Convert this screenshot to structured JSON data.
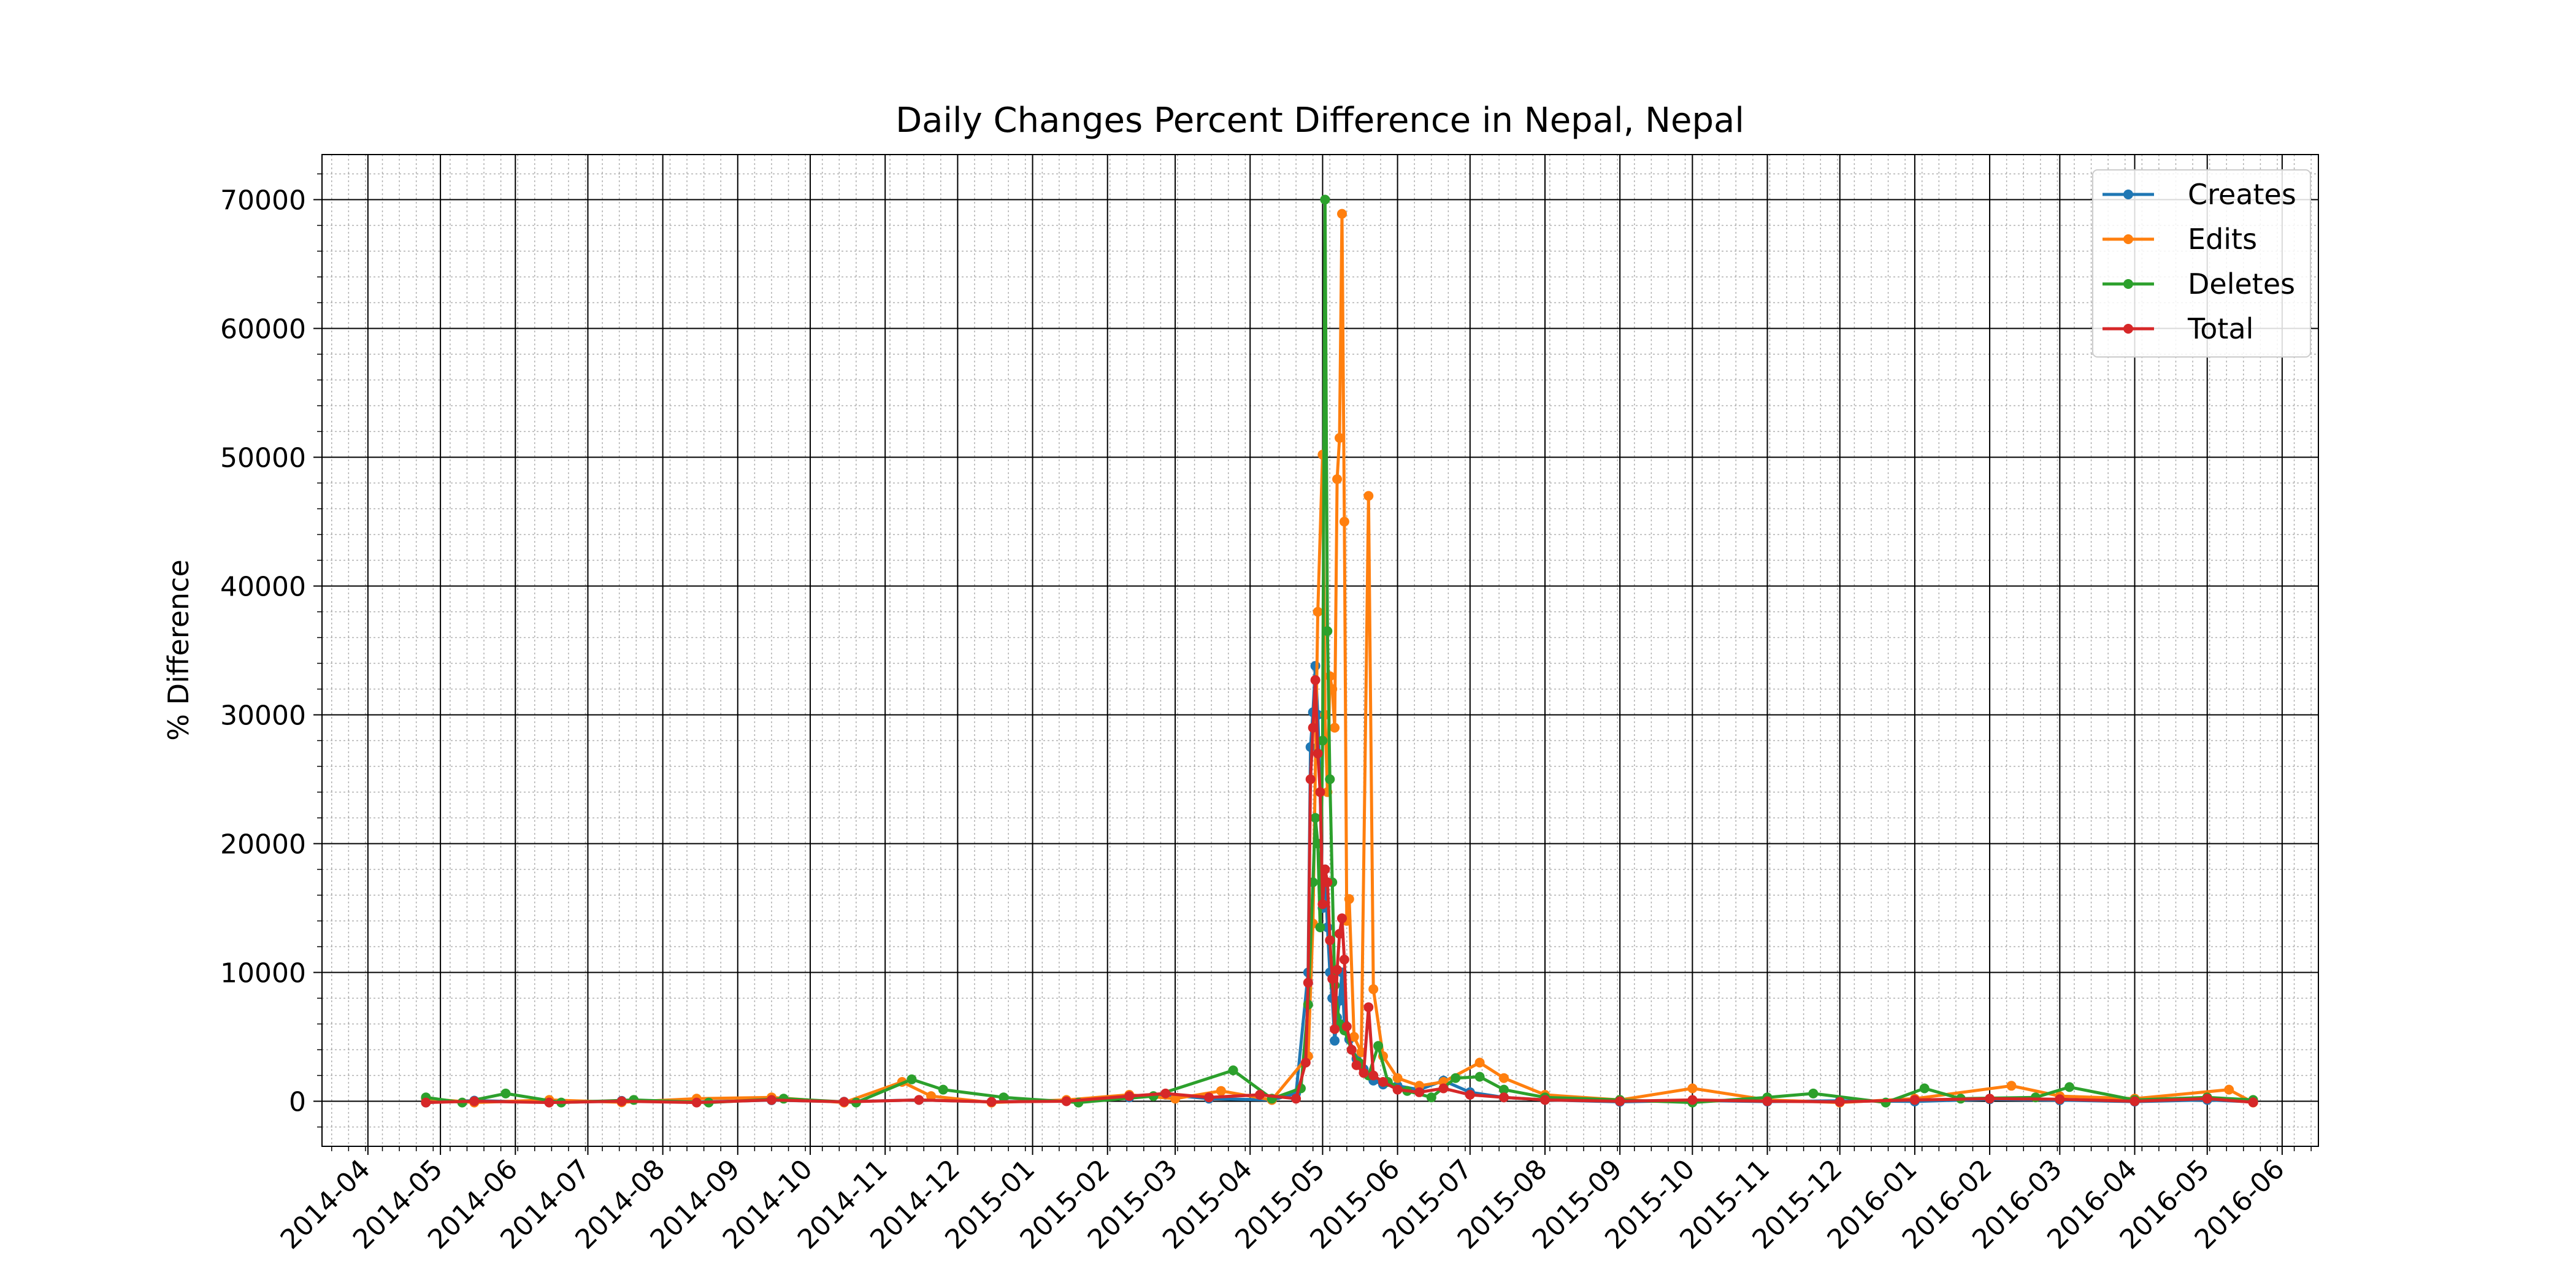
{
  "chart_data": {
    "type": "line",
    "title": "Daily Changes Percent Difference in Nepal, Nepal",
    "xlabel": "",
    "ylabel": "% Difference",
    "x_scale": "date",
    "xlim": [
      "2014-03-13",
      "2016-06-16"
    ],
    "ylim": [
      -3500,
      73500
    ],
    "yticks": [
      0,
      10000,
      20000,
      30000,
      40000,
      50000,
      60000,
      70000
    ],
    "ytick_labels": [
      "0",
      "10000",
      "20000",
      "30000",
      "40000",
      "50000",
      "60000",
      "70000"
    ],
    "xticks": [
      "2014-04-01",
      "2014-05-01",
      "2014-06-01",
      "2014-07-01",
      "2014-08-01",
      "2014-09-01",
      "2014-10-01",
      "2014-11-01",
      "2014-12-01",
      "2015-01-01",
      "2015-02-01",
      "2015-03-01",
      "2015-04-01",
      "2015-05-01",
      "2015-06-01",
      "2015-07-01",
      "2015-08-01",
      "2015-09-01",
      "2015-10-01",
      "2015-11-01",
      "2015-12-01",
      "2016-01-01",
      "2016-02-01",
      "2016-03-01",
      "2016-04-01",
      "2016-05-01",
      "2016-06-01"
    ],
    "xtick_labels": [
      "2014-04",
      "2014-05",
      "2014-06",
      "2014-07",
      "2014-08",
      "2014-09",
      "2014-10",
      "2014-11",
      "2014-12",
      "2015-01",
      "2015-02",
      "2015-03",
      "2015-04",
      "2015-05",
      "2015-06",
      "2015-07",
      "2015-08",
      "2015-09",
      "2015-10",
      "2015-11",
      "2015-12",
      "2016-01",
      "2016-02",
      "2016-03",
      "2016-04",
      "2016-05",
      "2016-06"
    ],
    "grid": true,
    "minor_grid": true,
    "legend_position": "top-right",
    "series": [
      {
        "name": "Creates",
        "color": "#1f77b4",
        "points": [
          [
            "2014-04-25",
            -100
          ],
          [
            "2014-05-15",
            50
          ],
          [
            "2014-06-15",
            -80
          ],
          [
            "2014-07-15",
            30
          ],
          [
            "2014-08-15",
            -60
          ],
          [
            "2014-09-15",
            80
          ],
          [
            "2014-10-15",
            -40
          ],
          [
            "2014-11-15",
            100
          ],
          [
            "2014-12-15",
            -50
          ],
          [
            "2015-01-15",
            60
          ],
          [
            "2015-02-10",
            300
          ],
          [
            "2015-02-25",
            500
          ],
          [
            "2015-03-15",
            200
          ],
          [
            "2015-04-10",
            100
          ],
          [
            "2015-04-20",
            600
          ],
          [
            "2015-04-25",
            10000
          ],
          [
            "2015-04-26",
            27500
          ],
          [
            "2015-04-27",
            30200
          ],
          [
            "2015-04-28",
            33800
          ],
          [
            "2015-04-29",
            30000
          ],
          [
            "2015-04-30",
            24000
          ],
          [
            "2015-05-01",
            15000
          ],
          [
            "2015-05-02",
            18000
          ],
          [
            "2015-05-03",
            13500
          ],
          [
            "2015-05-04",
            10000
          ],
          [
            "2015-05-05",
            8000
          ],
          [
            "2015-05-06",
            4700
          ],
          [
            "2015-05-07",
            6500
          ],
          [
            "2015-05-08",
            7800
          ],
          [
            "2015-05-09",
            10000
          ],
          [
            "2015-05-10",
            6000
          ],
          [
            "2015-05-12",
            4800
          ],
          [
            "2015-05-15",
            3300
          ],
          [
            "2015-05-18",
            2500
          ],
          [
            "2015-05-22",
            1600
          ],
          [
            "2015-05-26",
            1300
          ],
          [
            "2015-06-01",
            1200
          ],
          [
            "2015-06-10",
            900
          ],
          [
            "2015-06-20",
            1600
          ],
          [
            "2015-07-01",
            700
          ],
          [
            "2015-07-15",
            300
          ],
          [
            "2015-08-01",
            100
          ],
          [
            "2015-09-01",
            -50
          ],
          [
            "2015-10-01",
            60
          ],
          [
            "2015-11-01",
            -30
          ],
          [
            "2015-12-01",
            40
          ],
          [
            "2016-01-01",
            -20
          ],
          [
            "2016-02-01",
            150
          ],
          [
            "2016-03-01",
            80
          ],
          [
            "2016-04-01",
            -30
          ],
          [
            "2016-05-01",
            100
          ],
          [
            "2016-05-20",
            -50
          ]
        ]
      },
      {
        "name": "Edits",
        "color": "#ff7f0e",
        "points": [
          [
            "2014-04-25",
            200
          ],
          [
            "2014-05-15",
            -100
          ],
          [
            "2014-06-15",
            100
          ],
          [
            "2014-07-15",
            -80
          ],
          [
            "2014-08-15",
            200
          ],
          [
            "2014-09-15",
            300
          ],
          [
            "2014-10-15",
            -100
          ],
          [
            "2014-11-08",
            1500
          ],
          [
            "2014-11-20",
            400
          ],
          [
            "2014-12-15",
            -100
          ],
          [
            "2015-01-15",
            100
          ],
          [
            "2015-02-10",
            500
          ],
          [
            "2015-03-01",
            200
          ],
          [
            "2015-03-20",
            800
          ],
          [
            "2015-04-10",
            100
          ],
          [
            "2015-04-25",
            3500
          ],
          [
            "2015-04-27",
            13800
          ],
          [
            "2015-04-29",
            38000
          ],
          [
            "2015-05-01",
            50200
          ],
          [
            "2015-05-02",
            30000
          ],
          [
            "2015-05-03",
            24000
          ],
          [
            "2015-05-04",
            33000
          ],
          [
            "2015-05-05",
            32000
          ],
          [
            "2015-05-06",
            29000
          ],
          [
            "2015-05-07",
            48300
          ],
          [
            "2015-05-08",
            51500
          ],
          [
            "2015-05-09",
            68900
          ],
          [
            "2015-05-10",
            45000
          ],
          [
            "2015-05-11",
            14000
          ],
          [
            "2015-05-12",
            15700
          ],
          [
            "2015-05-14",
            5000
          ],
          [
            "2015-05-17",
            3800
          ],
          [
            "2015-05-20",
            47000
          ],
          [
            "2015-05-22",
            8700
          ],
          [
            "2015-05-26",
            3500
          ],
          [
            "2015-06-01",
            1800
          ],
          [
            "2015-06-10",
            1200
          ],
          [
            "2015-06-20",
            1500
          ],
          [
            "2015-07-05",
            3000
          ],
          [
            "2015-07-15",
            1800
          ],
          [
            "2015-08-01",
            500
          ],
          [
            "2015-09-01",
            100
          ],
          [
            "2015-10-01",
            1000
          ],
          [
            "2015-11-01",
            100
          ],
          [
            "2015-12-01",
            -100
          ],
          [
            "2016-01-01",
            200
          ],
          [
            "2016-02-10",
            1200
          ],
          [
            "2016-03-01",
            400
          ],
          [
            "2016-04-01",
            200
          ],
          [
            "2016-05-10",
            900
          ],
          [
            "2016-05-20",
            -100
          ]
        ]
      },
      {
        "name": "Deletes",
        "color": "#2ca02c",
        "points": [
          [
            "2014-04-25",
            300
          ],
          [
            "2014-05-10",
            -100
          ],
          [
            "2014-05-28",
            600
          ],
          [
            "2014-06-20",
            -100
          ],
          [
            "2014-07-20",
            100
          ],
          [
            "2014-08-20",
            -100
          ],
          [
            "2014-09-20",
            200
          ],
          [
            "2014-10-20",
            -100
          ],
          [
            "2014-11-12",
            1700
          ],
          [
            "2014-11-25",
            900
          ],
          [
            "2014-12-20",
            300
          ],
          [
            "2015-01-20",
            -100
          ],
          [
            "2015-02-20",
            400
          ],
          [
            "2015-03-25",
            2400
          ],
          [
            "2015-04-10",
            200
          ],
          [
            "2015-04-22",
            1000
          ],
          [
            "2015-04-25",
            7500
          ],
          [
            "2015-04-27",
            17000
          ],
          [
            "2015-04-28",
            22000
          ],
          [
            "2015-04-29",
            20000
          ],
          [
            "2015-04-30",
            13500
          ],
          [
            "2015-05-01",
            28000
          ],
          [
            "2015-05-02",
            70000
          ],
          [
            "2015-05-03",
            36500
          ],
          [
            "2015-05-04",
            25000
          ],
          [
            "2015-05-05",
            17000
          ],
          [
            "2015-05-06",
            9000
          ],
          [
            "2015-05-08",
            6000
          ],
          [
            "2015-05-10",
            5500
          ],
          [
            "2015-05-13",
            4000
          ],
          [
            "2015-05-16",
            3000
          ],
          [
            "2015-05-20",
            2000
          ],
          [
            "2015-05-24",
            4300
          ],
          [
            "2015-05-28",
            1500
          ],
          [
            "2015-06-05",
            800
          ],
          [
            "2015-06-15",
            300
          ],
          [
            "2015-06-25",
            1800
          ],
          [
            "2015-07-05",
            1900
          ],
          [
            "2015-07-15",
            900
          ],
          [
            "2015-08-01",
            300
          ],
          [
            "2015-09-01",
            100
          ],
          [
            "2015-10-01",
            -100
          ],
          [
            "2015-11-01",
            300
          ],
          [
            "2015-11-20",
            600
          ],
          [
            "2015-12-20",
            -100
          ],
          [
            "2016-01-05",
            1000
          ],
          [
            "2016-01-20",
            200
          ],
          [
            "2016-02-20",
            300
          ],
          [
            "2016-03-05",
            1100
          ],
          [
            "2016-04-01",
            100
          ],
          [
            "2016-05-01",
            300
          ],
          [
            "2016-05-20",
            100
          ]
        ]
      },
      {
        "name": "Total",
        "color": "#d62728",
        "points": [
          [
            "2014-04-25",
            -100
          ],
          [
            "2014-05-15",
            0
          ],
          [
            "2014-06-15",
            -100
          ],
          [
            "2014-07-15",
            0
          ],
          [
            "2014-08-15",
            -100
          ],
          [
            "2014-09-15",
            100
          ],
          [
            "2014-10-15",
            -50
          ],
          [
            "2014-11-15",
            100
          ],
          [
            "2014-12-15",
            -50
          ],
          [
            "2015-01-15",
            0
          ],
          [
            "2015-02-10",
            400
          ],
          [
            "2015-02-25",
            600
          ],
          [
            "2015-03-15",
            300
          ],
          [
            "2015-04-05",
            500
          ],
          [
            "2015-04-20",
            200
          ],
          [
            "2015-04-24",
            3000
          ],
          [
            "2015-04-25",
            9200
          ],
          [
            "2015-04-26",
            25000
          ],
          [
            "2015-04-27",
            29000
          ],
          [
            "2015-04-28",
            32700
          ],
          [
            "2015-04-29",
            27000
          ],
          [
            "2015-04-30",
            24000
          ],
          [
            "2015-05-01",
            15300
          ],
          [
            "2015-05-02",
            18000
          ],
          [
            "2015-05-03",
            17000
          ],
          [
            "2015-05-04",
            12500
          ],
          [
            "2015-05-05",
            9500
          ],
          [
            "2015-05-06",
            5600
          ],
          [
            "2015-05-07",
            10200
          ],
          [
            "2015-05-08",
            13000
          ],
          [
            "2015-05-09",
            14200
          ],
          [
            "2015-05-10",
            11000
          ],
          [
            "2015-05-11",
            5800
          ],
          [
            "2015-05-13",
            4000
          ],
          [
            "2015-05-15",
            2800
          ],
          [
            "2015-05-18",
            2200
          ],
          [
            "2015-05-20",
            7300
          ],
          [
            "2015-05-22",
            2000
          ],
          [
            "2015-05-26",
            1500
          ],
          [
            "2015-06-01",
            900
          ],
          [
            "2015-06-10",
            700
          ],
          [
            "2015-06-20",
            1000
          ],
          [
            "2015-07-01",
            500
          ],
          [
            "2015-07-15",
            300
          ],
          [
            "2015-08-01",
            100
          ],
          [
            "2015-09-01",
            0
          ],
          [
            "2015-10-01",
            100
          ],
          [
            "2015-11-01",
            0
          ],
          [
            "2015-12-01",
            -50
          ],
          [
            "2016-01-01",
            100
          ],
          [
            "2016-02-01",
            200
          ],
          [
            "2016-03-01",
            150
          ],
          [
            "2016-04-01",
            0
          ],
          [
            "2016-05-01",
            200
          ],
          [
            "2016-05-20",
            -80
          ]
        ]
      }
    ]
  }
}
